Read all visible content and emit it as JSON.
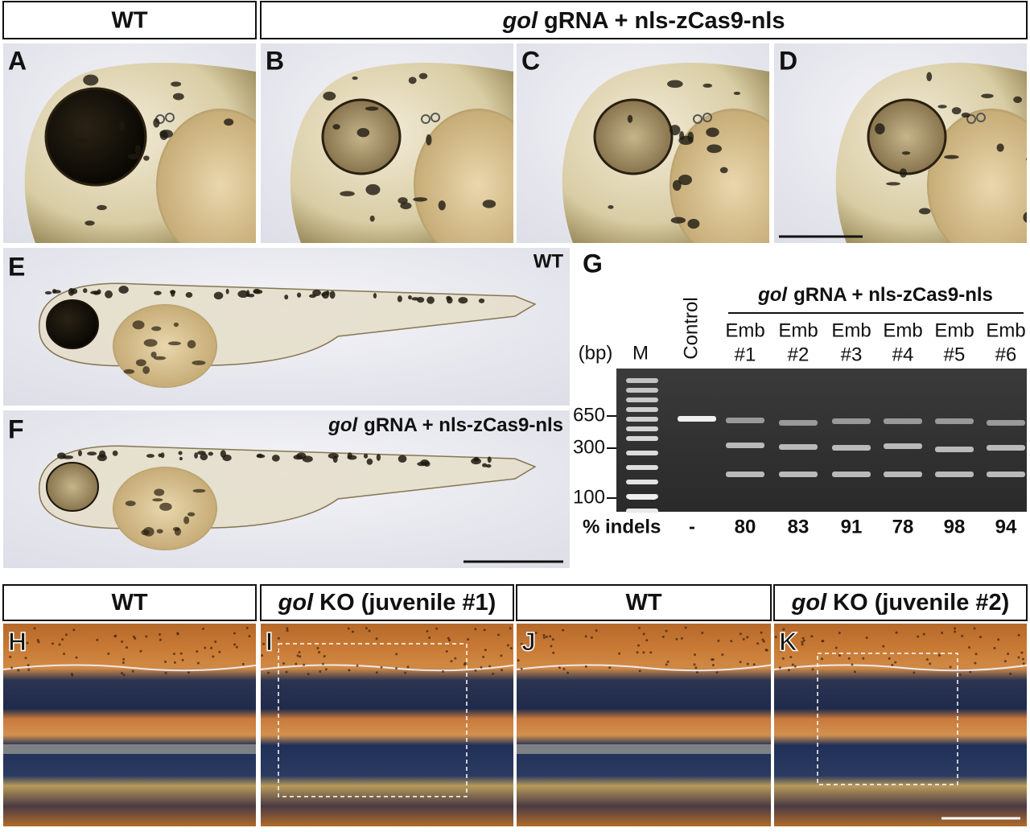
{
  "header": {
    "wt": "WT",
    "treatment": {
      "italic": "gol",
      "rest": "gRNA + nls-zCas9-nls"
    }
  },
  "panel_letters": [
    "A",
    "B",
    "C",
    "D",
    "E",
    "F",
    "G",
    "H",
    "I",
    "J",
    "K"
  ],
  "panel_e_label": "WT",
  "panel_f_label": {
    "italic": "gol",
    "rest": "gRNA + nls-zCas9-nls"
  },
  "gel": {
    "treatment": {
      "italic": "gol",
      "rest": "gRNA + nls-zCas9-nls"
    },
    "size_unit": "(bp)",
    "marker": "M",
    "control": "Control",
    "lanes": [
      {
        "name": "Emb",
        "number": "#1"
      },
      {
        "name": "Emb",
        "number": "#2"
      },
      {
        "name": "Emb",
        "number": "#3"
      },
      {
        "name": "Emb",
        "number": "#4"
      },
      {
        "name": "Emb",
        "number": "#5"
      },
      {
        "name": "Emb",
        "number": "#6"
      }
    ],
    "size_labels": [
      650,
      300,
      100
    ],
    "indels_label": "% indels",
    "indels": [
      "-",
      80,
      83,
      91,
      78,
      98,
      94
    ]
  },
  "bottom_headers": [
    {
      "rest": "WT"
    },
    {
      "italic": "gol",
      "rest": "KO (juvenile #1)"
    },
    {
      "rest": "WT"
    },
    {
      "italic": "gol",
      "rest": "KO (juvenile #2)"
    }
  ]
}
